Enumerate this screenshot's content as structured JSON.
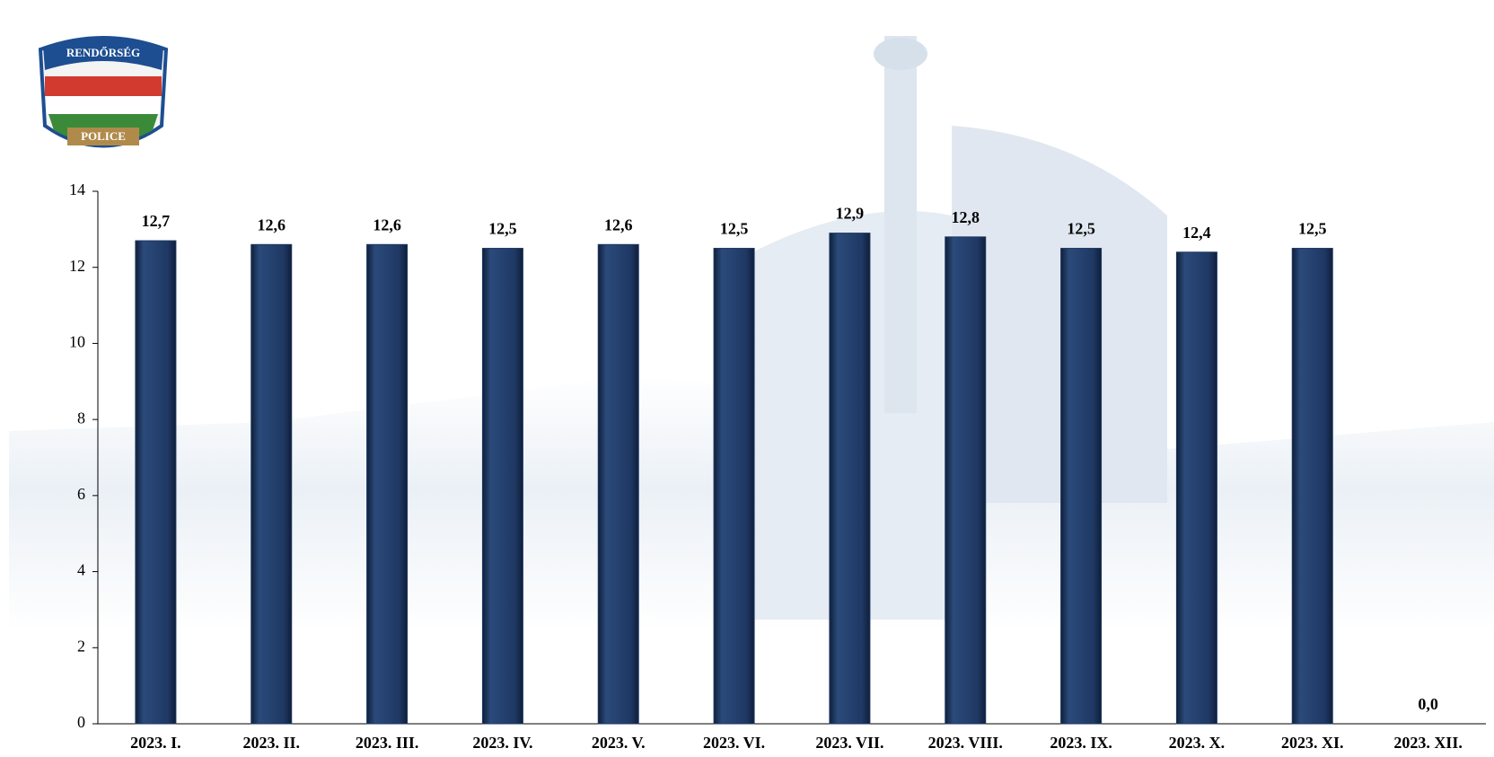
{
  "logo": {
    "top": "RENDŐRSÉG",
    "bottom": "POLICE"
  },
  "chart_data": {
    "type": "bar",
    "categories": [
      "2023. I.",
      "2023. II.",
      "2023. III.",
      "2023. IV.",
      "2023. V.",
      "2023. VI.",
      "2023. VII.",
      "2023. VIII.",
      "2023. IX.",
      "2023. X.",
      "2023. XI.",
      "2023. XII."
    ],
    "values": [
      12.7,
      12.6,
      12.6,
      12.5,
      12.6,
      12.5,
      12.9,
      12.8,
      12.5,
      12.4,
      12.5,
      0.0
    ],
    "value_labels": [
      "12,7",
      "12,6",
      "12,6",
      "12,5",
      "12,6",
      "12,5",
      "12,9",
      "12,8",
      "12,5",
      "12,4",
      "12,5",
      "0,0"
    ],
    "color": "#1f3864",
    "ylim": [
      0,
      14
    ],
    "yticks": [
      0,
      2,
      4,
      6,
      8,
      10,
      12,
      14
    ],
    "grid": false
  }
}
